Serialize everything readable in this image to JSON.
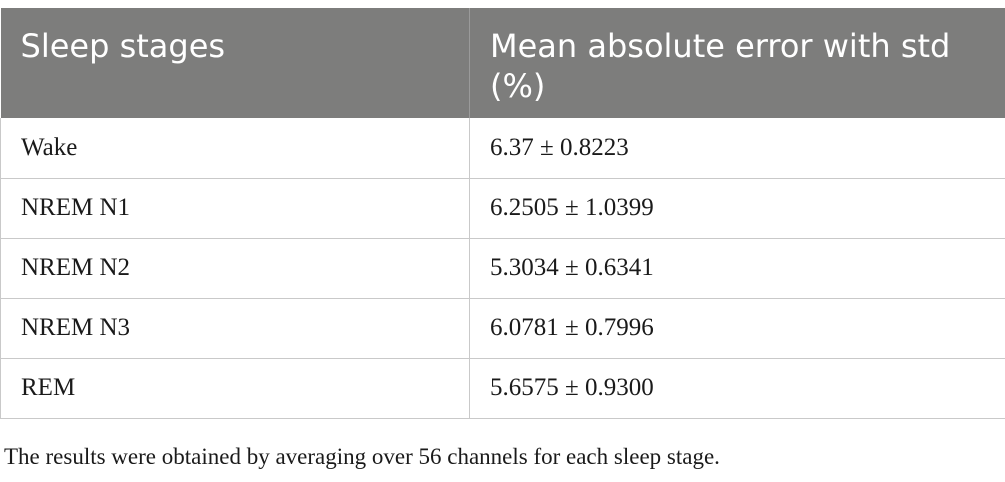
{
  "table": {
    "headers": [
      "Sleep stages",
      "Mean absolute error with std (%)"
    ],
    "rows": [
      [
        "Wake",
        "6.37 ± 0.8223"
      ],
      [
        "NREM N1",
        "6.2505 ± 1.0399"
      ],
      [
        "NREM N2",
        "5.3034 ± 0.6341"
      ],
      [
        "NREM N3",
        "6.0781 ± 0.7996"
      ],
      [
        "REM",
        "5.6575 ± 0.9300"
      ]
    ],
    "header_bg": "#7d7d7c"
  },
  "footnote": "The results were obtained by averaging over 56 channels for each sleep stage."
}
